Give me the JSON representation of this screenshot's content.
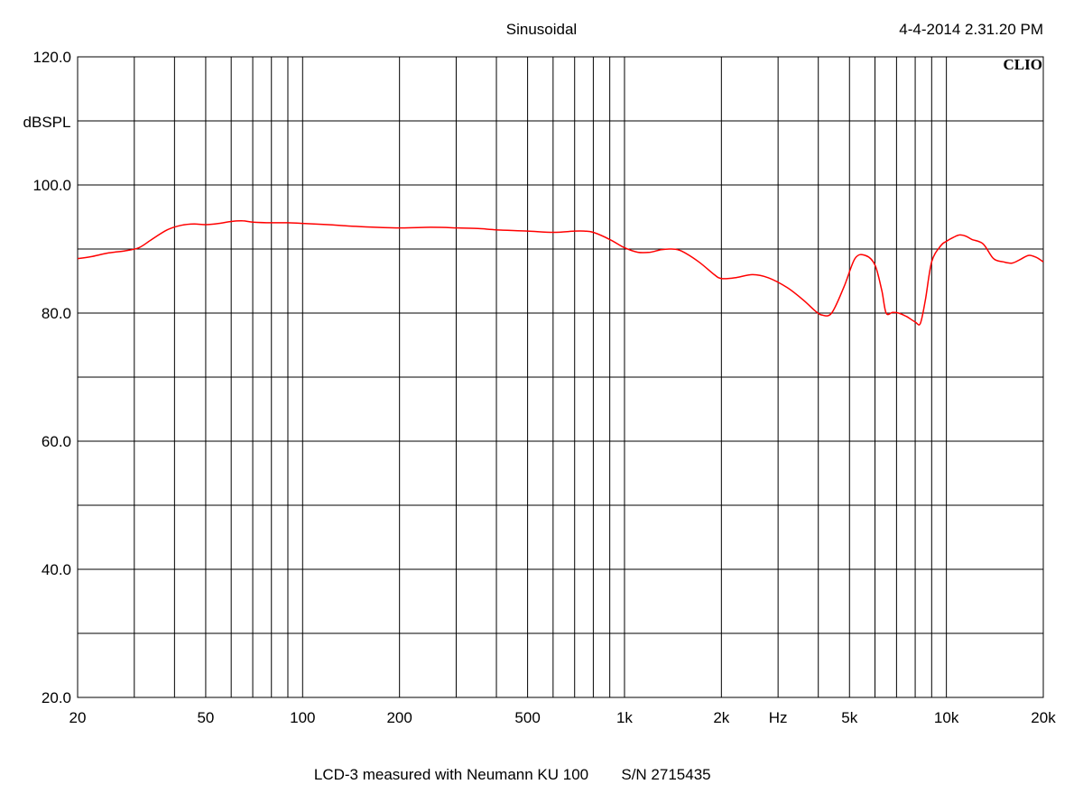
{
  "header": {
    "mode": "Sinusoidal",
    "timestamp": "4-4-2014 2.31.20 PM",
    "brand": "CLIO"
  },
  "footer": {
    "caption": "LCD-3 measured with Neumann KU 100",
    "serial": "S/N  2715435"
  },
  "colors": {
    "curve": "#ff0000",
    "grid": "#000000",
    "background": "#ffffff"
  },
  "chart_data": {
    "type": "line",
    "title": "Sinusoidal",
    "xlabel": "Hz",
    "ylabel": "dBSPL",
    "xscale": "log",
    "xlim": [
      20,
      20000
    ],
    "ylim": [
      20,
      120
    ],
    "grid": true,
    "x_ticks": [
      {
        "value": 20,
        "label": "20"
      },
      {
        "value": 50,
        "label": "50"
      },
      {
        "value": 100,
        "label": "100"
      },
      {
        "value": 200,
        "label": "200"
      },
      {
        "value": 500,
        "label": "500"
      },
      {
        "value": 1000,
        "label": "1k"
      },
      {
        "value": 2000,
        "label": "2k"
      },
      {
        "value": 5000,
        "label": "5k"
      },
      {
        "value": 10000,
        "label": "10k"
      },
      {
        "value": 20000,
        "label": "20k"
      }
    ],
    "x_unit_label_at": 3000,
    "y_ticks": [
      {
        "value": 120,
        "label": "120.0"
      },
      {
        "value": 100,
        "label": "100.0"
      },
      {
        "value": 80,
        "label": "80.0"
      },
      {
        "value": 60,
        "label": "60.0"
      },
      {
        "value": 40,
        "label": "40.0"
      },
      {
        "value": 20,
        "label": "20.0"
      }
    ],
    "y_gridlines": [
      20,
      30,
      40,
      50,
      60,
      70,
      80,
      90,
      100,
      110,
      120
    ],
    "x_gridlines": [
      20,
      30,
      40,
      50,
      60,
      70,
      80,
      90,
      100,
      200,
      300,
      400,
      500,
      600,
      700,
      800,
      900,
      1000,
      2000,
      3000,
      4000,
      5000,
      6000,
      7000,
      8000,
      9000,
      10000,
      20000
    ],
    "series": [
      {
        "x": [
          20,
          22,
          25,
          28,
          31,
          34,
          38,
          42,
          46,
          50,
          55,
          60,
          65,
          70,
          80,
          90,
          100,
          120,
          150,
          200,
          250,
          300,
          350,
          400,
          500,
          600,
          700,
          750,
          800,
          900,
          1000,
          1100,
          1200,
          1300,
          1400,
          1500,
          1700,
          1900,
          2000,
          2200,
          2500,
          2800,
          3200,
          3600,
          3900,
          4100,
          4400,
          4800,
          5200,
          5600,
          6000,
          6300,
          6500,
          6800,
          7100,
          7500,
          8000,
          8300,
          8600,
          9000,
          9600,
          10000,
          10500,
          11000,
          11500,
          12000,
          13000,
          14000,
          15000,
          16000,
          17000,
          18000,
          19000,
          20000
        ],
        "y": [
          88.5,
          88.8,
          89.4,
          89.7,
          90.2,
          91.5,
          93.0,
          93.7,
          93.9,
          93.8,
          94.0,
          94.3,
          94.4,
          94.2,
          94.1,
          94.1,
          94.0,
          93.8,
          93.5,
          93.3,
          93.4,
          93.3,
          93.2,
          93.0,
          92.8,
          92.6,
          92.8,
          92.8,
          92.6,
          91.5,
          90.2,
          89.5,
          89.5,
          89.9,
          90.0,
          89.7,
          88.0,
          86.0,
          85.4,
          85.5,
          86.0,
          85.5,
          84.0,
          82.0,
          80.4,
          79.7,
          80.0,
          84.0,
          88.5,
          89.0,
          87.5,
          83.5,
          80.0,
          80.1,
          80.0,
          79.5,
          78.6,
          78.4,
          82.0,
          88.0,
          90.5,
          91.2,
          91.8,
          92.2,
          92.0,
          91.5,
          90.8,
          88.5,
          88.0,
          87.8,
          88.4,
          89.0,
          88.7,
          88.0
        ]
      }
    ]
  }
}
